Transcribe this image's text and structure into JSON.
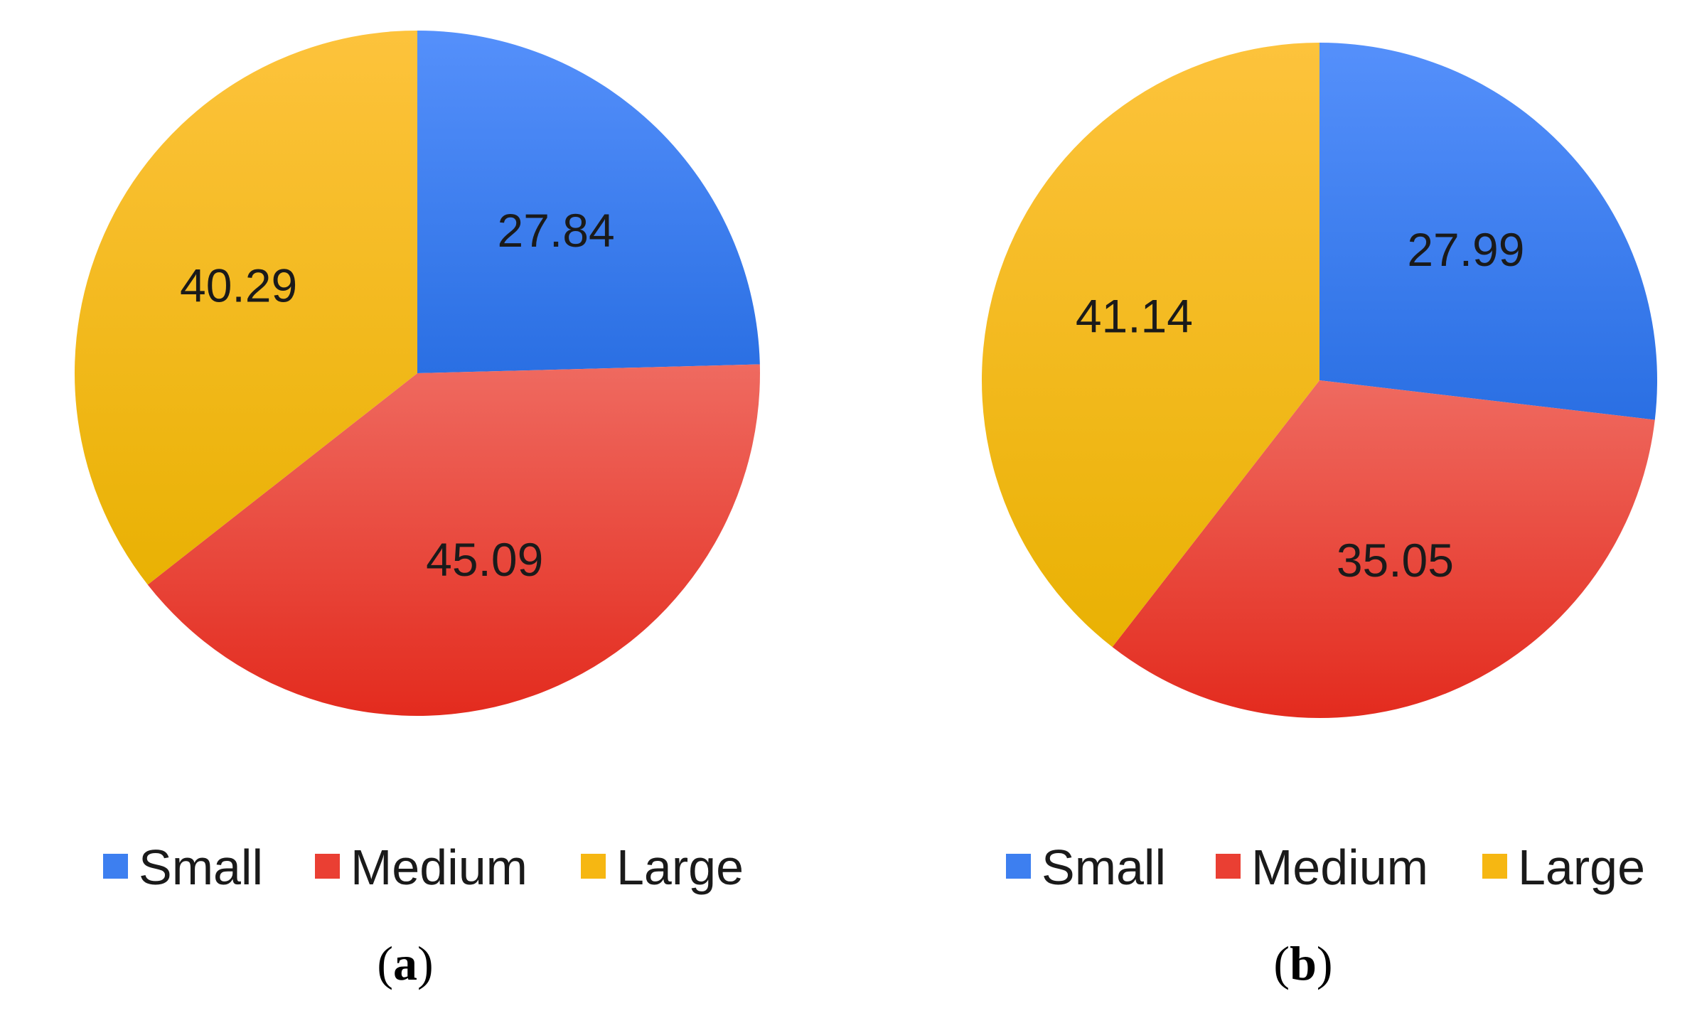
{
  "chart_data": [
    {
      "type": "pie",
      "panel": "a",
      "categories": [
        "Small",
        "Medium",
        "Large"
      ],
      "values": [
        27.84,
        45.09,
        40.29
      ],
      "data_labels": [
        "27.84",
        "45.09",
        "40.29"
      ],
      "colors": [
        "#3d7ff0",
        "#ea3f33",
        "#f6b712"
      ],
      "legend": [
        "Small",
        "Medium",
        "Large"
      ],
      "legend_position": "bottom",
      "title": ""
    },
    {
      "type": "pie",
      "panel": "b",
      "categories": [
        "Small",
        "Medium",
        "Large"
      ],
      "values": [
        27.99,
        35.05,
        41.14
      ],
      "data_labels": [
        "27.99",
        "35.05",
        "41.14"
      ],
      "colors": [
        "#3d7ff0",
        "#ea3f33",
        "#f6b712"
      ],
      "legend": [
        "Small",
        "Medium",
        "Large"
      ],
      "legend_position": "bottom",
      "title": ""
    }
  ]
}
